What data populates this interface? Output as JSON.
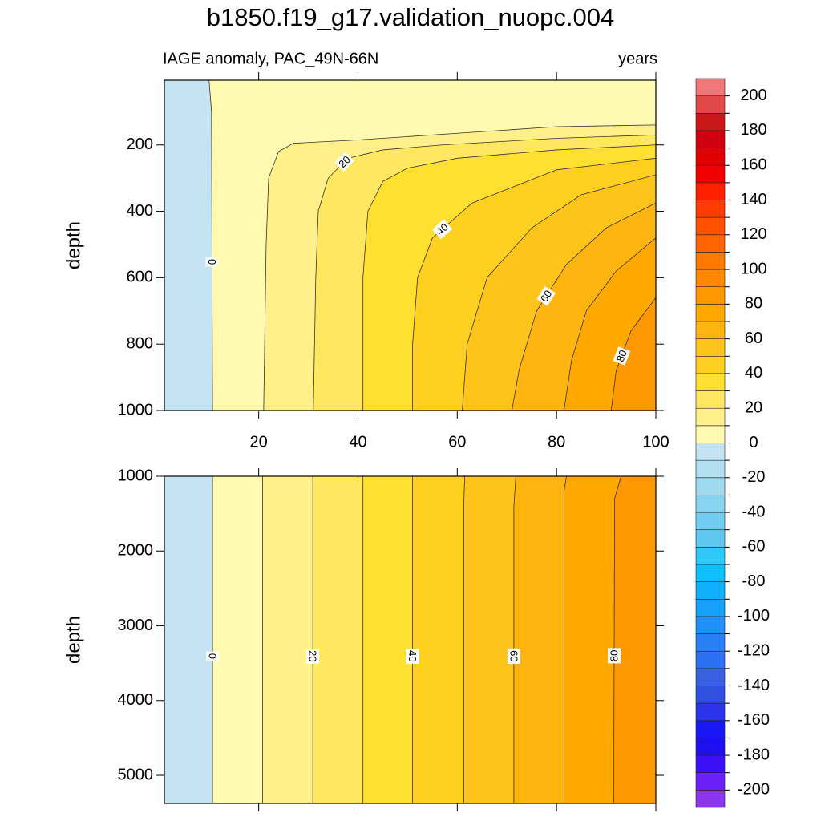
{
  "title": "b1850.f19_g17.validation_nuopc.004",
  "chart_data": [
    {
      "type": "contour",
      "subtitle_left": "IAGE anomaly, PAC_49N-66N",
      "subtitle_right": "years",
      "y_label": "depth",
      "xlim": [
        1,
        100
      ],
      "xticks": [
        20,
        40,
        60,
        80,
        100
      ],
      "show_xtick_labels": true,
      "ylim": [
        5,
        1000
      ],
      "yticks": [
        200,
        400,
        600,
        800,
        1000
      ],
      "y_reversed": true,
      "contours": [
        {
          "level": 0,
          "points": [
            [
              10,
              5
            ],
            [
              10.5,
              100
            ],
            [
              10.7,
              1000
            ]
          ]
        },
        {
          "level": 10,
          "points": [
            [
              100,
              140
            ],
            [
              80,
              145
            ],
            [
              60,
              165
            ],
            [
              40,
              185
            ],
            [
              27,
              195
            ],
            [
              24,
              220
            ],
            [
              22,
              300
            ],
            [
              21.5,
              500
            ],
            [
              21,
              1000
            ]
          ]
        },
        {
          "level": 20,
          "points": [
            [
              100,
              170
            ],
            [
              80,
              180
            ],
            [
              57,
              200
            ],
            [
              45,
              215
            ],
            [
              38,
              240
            ],
            [
              34,
              300
            ],
            [
              32,
              400
            ],
            [
              31.5,
              600
            ],
            [
              31,
              1000
            ]
          ]
        },
        {
          "level": 30,
          "points": [
            [
              100,
              200
            ],
            [
              80,
              215
            ],
            [
              60,
              240
            ],
            [
              50,
              270
            ],
            [
              45,
              310
            ],
            [
              42,
              400
            ],
            [
              41,
              600
            ],
            [
              41,
              1000
            ]
          ]
        },
        {
          "level": 40,
          "points": [
            [
              100,
              240
            ],
            [
              80,
              275
            ],
            [
              63,
              375
            ],
            [
              55,
              480
            ],
            [
              52,
              600
            ],
            [
              51,
              800
            ],
            [
              51,
              1000
            ]
          ]
        },
        {
          "level": 50,
          "points": [
            [
              100,
              290
            ],
            [
              85,
              350
            ],
            [
              75,
              450
            ],
            [
              66,
              600
            ],
            [
              62,
              800
            ],
            [
              61,
              1000
            ]
          ]
        },
        {
          "level": 60,
          "points": [
            [
              100,
              375
            ],
            [
              90,
              450
            ],
            [
              82,
              560
            ],
            [
              76,
              700
            ],
            [
              72.5,
              875
            ],
            [
              71,
              1000
            ]
          ]
        },
        {
          "level": 70,
          "points": [
            [
              100,
              480
            ],
            [
              92,
              580
            ],
            [
              86,
              700
            ],
            [
              83,
              850
            ],
            [
              81.5,
              1000
            ]
          ]
        },
        {
          "level": 80,
          "points": [
            [
              100,
              660
            ],
            [
              95,
              760
            ],
            [
              92,
              880
            ],
            [
              91,
              1000
            ]
          ]
        }
      ]
    },
    {
      "type": "contour",
      "y_label": "depth",
      "xlim": [
        1,
        100
      ],
      "xticks": [
        20,
        40,
        60,
        80,
        100
      ],
      "show_xtick_labels": false,
      "ylim": [
        1000,
        5375
      ],
      "yticks": [
        1000,
        2000,
        3000,
        4000,
        5000
      ],
      "y_reversed": true,
      "contours": [
        {
          "level": 0,
          "points": [
            [
              10.7,
              1000
            ],
            [
              10.7,
              5375
            ]
          ]
        },
        {
          "level": 10,
          "points": [
            [
              20.8,
              1000
            ],
            [
              20.8,
              5375
            ]
          ]
        },
        {
          "level": 20,
          "points": [
            [
              30.9,
              1000
            ],
            [
              30.9,
              5375
            ]
          ]
        },
        {
          "level": 30,
          "points": [
            [
              41,
              1000
            ],
            [
              41,
              5375
            ]
          ]
        },
        {
          "level": 40,
          "points": [
            [
              51,
              1000
            ],
            [
              51,
              5375
            ]
          ]
        },
        {
          "level": 50,
          "points": [
            [
              61.5,
              1000
            ],
            [
              61.3,
              1400
            ],
            [
              61.3,
              5375
            ]
          ]
        },
        {
          "level": 60,
          "points": [
            [
              71.8,
              1000
            ],
            [
              71.4,
              1400
            ],
            [
              71.4,
              5375
            ]
          ]
        },
        {
          "level": 70,
          "points": [
            [
              82,
              1000
            ],
            [
              81.5,
              1200
            ],
            [
              81.5,
              5375
            ]
          ]
        },
        {
          "level": 80,
          "points": [
            [
              93,
              1000
            ],
            [
              91.7,
              1300
            ],
            [
              91.5,
              5375
            ]
          ]
        }
      ]
    }
  ],
  "colorbar": {
    "levels": [
      -200,
      -190,
      -180,
      -170,
      -160,
      -150,
      -140,
      -130,
      -120,
      -110,
      -100,
      -90,
      -80,
      -70,
      -60,
      -50,
      -40,
      -30,
      -20,
      -10,
      0,
      10,
      20,
      30,
      40,
      50,
      60,
      70,
      80,
      90,
      100,
      110,
      120,
      130,
      140,
      150,
      160,
      170,
      180,
      190,
      200
    ],
    "colors": [
      "#8c35ee",
      "#6a1ff6",
      "#3b10f8",
      "#1e0ff0",
      "#1818f5",
      "#2a33e8",
      "#3050e0",
      "#3a60e0",
      "#2a70f0",
      "#2880f5",
      "#2090f8",
      "#15a0fa",
      "#10b0fc",
      "#10c0fc",
      "#30c8f8",
      "#60c8f0",
      "#70ccf0",
      "#88d4f0",
      "#a0daf0",
      "#b0e0f2",
      "#c4e4f4",
      "#fffab0",
      "#fff08a",
      "#ffe860",
      "#ffdf30",
      "#ffd020",
      "#ffc41a",
      "#ffb410",
      "#ffa800",
      "#ff9800",
      "#ff8800",
      "#ff7800",
      "#ff6400",
      "#ff5000",
      "#ff3c00",
      "#ff2000",
      "#f00000",
      "#e00000",
      "#d00010",
      "#c81818",
      "#e04848",
      "#f07878"
    ]
  }
}
